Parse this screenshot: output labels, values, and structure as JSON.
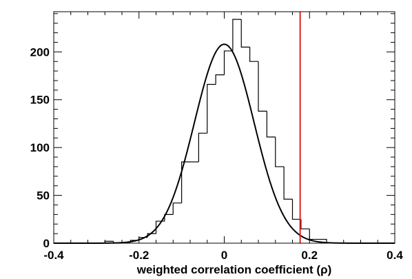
{
  "chart_data": {
    "type": "bar",
    "title": "",
    "xlabel": "weighted correlation coefficient (ρ)",
    "ylabel": "",
    "xlim": [
      -0.4,
      0.4
    ],
    "ylim": [
      0,
      242
    ],
    "grid": false,
    "x_ticks": [
      -0.4,
      -0.2,
      0,
      0.2,
      0.4
    ],
    "x_tick_labels": [
      "-0.4",
      "-0.2",
      "0",
      "0.2",
      "0.4"
    ],
    "y_ticks": [
      0,
      50,
      100,
      150,
      200
    ],
    "y_tick_labels": [
      "0",
      "50",
      "100",
      "150",
      "200"
    ],
    "bin_width": 0.02,
    "histogram": {
      "bin_edges": [
        -0.28,
        -0.26,
        -0.24,
        -0.22,
        -0.2,
        -0.18,
        -0.16,
        -0.14,
        -0.12,
        -0.1,
        -0.08,
        -0.06,
        -0.04,
        -0.02,
        0.0,
        0.02,
        0.04,
        0.06,
        0.08,
        0.1,
        0.12,
        0.14,
        0.16,
        0.18,
        0.2,
        0.22,
        0.24
      ],
      "counts": [
        2,
        0,
        1,
        3,
        6,
        10,
        23,
        30,
        42,
        85,
        85,
        115,
        166,
        176,
        201,
        234,
        205,
        190,
        138,
        111,
        80,
        46,
        25,
        15,
        4,
        4
      ]
    },
    "fit_curve": {
      "type": "gaussian",
      "amplitude": 208,
      "mean": 0,
      "sigma": 0.07
    },
    "vertical_line": {
      "x": 0.178,
      "color": "#e02020"
    },
    "colors": {
      "histogram": "#000000",
      "fit": "#000000",
      "marker": "#e02020"
    }
  }
}
